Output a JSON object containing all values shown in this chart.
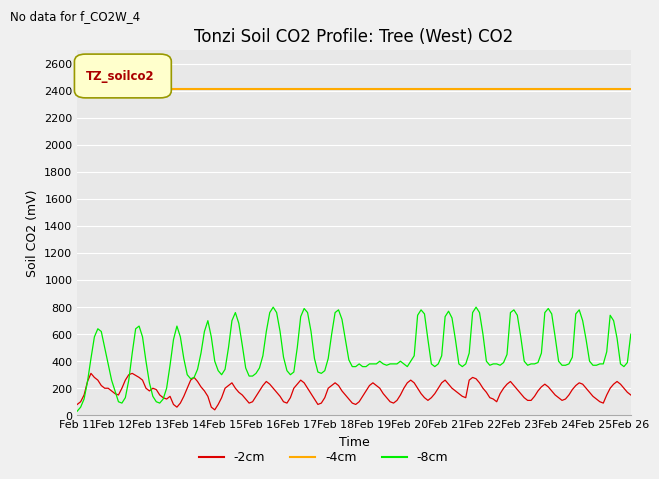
{
  "title": "Tonzi Soil CO2 Profile: Tree (West) CO2",
  "no_data_text": "No data for f_CO2W_4",
  "ylabel": "Soil CO2 (mV)",
  "xlabel": "Time",
  "ylim": [
    0,
    2700
  ],
  "bg_color": "#e8e8e8",
  "legend_label": "TZ_soilco2",
  "legend_bg": "#ffffcc",
  "legend_edge": "#999900",
  "orange_value": 2415,
  "series_labels": [
    "-2cm",
    "-4cm",
    "-8cm"
  ],
  "series_colors": [
    "#dd0000",
    "#ffaa00",
    "#00ee00"
  ],
  "red_data": [
    80,
    100,
    150,
    250,
    310,
    280,
    260,
    220,
    200,
    200,
    180,
    160,
    150,
    200,
    260,
    300,
    310,
    295,
    280,
    260,
    200,
    180,
    200,
    190,
    150,
    130,
    120,
    140,
    80,
    60,
    90,
    140,
    200,
    260,
    280,
    250,
    210,
    180,
    140,
    60,
    40,
    80,
    130,
    200,
    220,
    240,
    200,
    170,
    150,
    120,
    90,
    100,
    140,
    180,
    220,
    250,
    230,
    200,
    170,
    140,
    100,
    90,
    130,
    200,
    230,
    260,
    240,
    200,
    160,
    120,
    80,
    90,
    130,
    200,
    220,
    240,
    220,
    180,
    150,
    120,
    90,
    80,
    100,
    140,
    180,
    220,
    240,
    220,
    200,
    160,
    130,
    100,
    90,
    110,
    150,
    200,
    240,
    260,
    240,
    200,
    160,
    130,
    110,
    130,
    160,
    200,
    240,
    260,
    230,
    200,
    180,
    160,
    140,
    130,
    260,
    280,
    270,
    240,
    200,
    170,
    130,
    120,
    100,
    160,
    200,
    230,
    250,
    220,
    190,
    160,
    130,
    110,
    110,
    140,
    180,
    210,
    230,
    210,
    180,
    150,
    130,
    110,
    120,
    150,
    190,
    220,
    240,
    230,
    200,
    170,
    140,
    120,
    100,
    90,
    150,
    200,
    230,
    250,
    230,
    200,
    170,
    150
  ],
  "green_data": [
    30,
    60,
    120,
    250,
    420,
    580,
    640,
    620,
    500,
    380,
    260,
    180,
    100,
    90,
    130,
    260,
    460,
    640,
    660,
    580,
    400,
    240,
    140,
    100,
    90,
    120,
    200,
    370,
    560,
    660,
    580,
    420,
    300,
    270,
    280,
    340,
    460,
    620,
    700,
    580,
    400,
    330,
    300,
    340,
    500,
    700,
    760,
    680,
    520,
    350,
    290,
    290,
    310,
    350,
    440,
    620,
    760,
    800,
    760,
    620,
    430,
    330,
    300,
    320,
    500,
    730,
    790,
    760,
    620,
    420,
    320,
    310,
    330,
    420,
    600,
    760,
    780,
    710,
    560,
    410,
    360,
    360,
    380,
    360,
    360,
    380,
    380,
    380,
    400,
    380,
    370,
    380,
    380,
    380,
    400,
    380,
    360,
    400,
    440,
    740,
    780,
    750,
    560,
    380,
    360,
    380,
    440,
    730,
    770,
    720,
    560,
    380,
    360,
    380,
    460,
    760,
    800,
    760,
    600,
    400,
    370,
    380,
    380,
    370,
    390,
    450,
    760,
    780,
    740,
    580,
    400,
    370,
    380,
    380,
    390,
    460,
    760,
    790,
    750,
    580,
    400,
    370,
    370,
    380,
    430,
    750,
    780,
    700,
    560,
    400,
    370,
    370,
    380,
    380,
    470,
    740,
    700,
    570,
    380,
    360,
    390,
    600
  ],
  "n_points": 162,
  "yticks": [
    0,
    200,
    400,
    600,
    800,
    1000,
    1200,
    1400,
    1600,
    1800,
    2000,
    2200,
    2400,
    2600
  ],
  "xtick_labels": [
    "Feb 11",
    "Feb 12",
    "Feb 13",
    "Feb 14",
    "Feb 15",
    "Feb 16",
    "Feb 17",
    "Feb 18",
    "Feb 19",
    "Feb 20",
    "Feb 21",
    "Feb 22",
    "Feb 23",
    "Feb 24",
    "Feb 25",
    "Feb 26"
  ],
  "grid_color": "#ffffff",
  "title_fontsize": 12,
  "label_fontsize": 9,
  "tick_fontsize": 8
}
